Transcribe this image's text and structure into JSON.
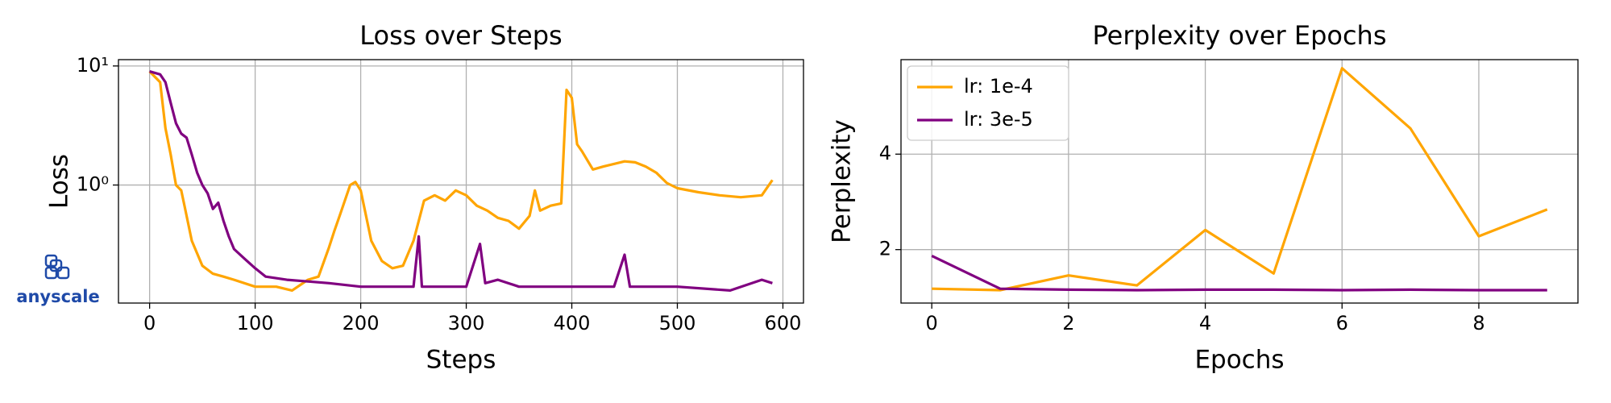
{
  "logo": "anyscale",
  "chart_data": [
    {
      "type": "line",
      "title": "Loss over Steps",
      "xlabel": "Steps",
      "ylabel": "Loss",
      "yscale": "log",
      "grid": true,
      "xlim": [
        -29.5,
        619.5
      ],
      "xticks": [
        0,
        100,
        200,
        300,
        400,
        500,
        600
      ],
      "ylim": [
        0.102,
        11.3
      ],
      "yticks": [
        {
          "value": 1,
          "label": "10⁰"
        },
        {
          "value": 10,
          "label": "10¹"
        }
      ],
      "series": [
        {
          "name": "lr: 1e-4",
          "color": "#ffa500",
          "x": [
            0,
            10,
            15,
            20,
            25,
            30,
            33,
            40,
            50,
            60,
            70,
            80,
            100,
            120,
            135,
            150,
            160,
            170,
            175,
            180,
            190,
            195,
            200,
            210,
            220,
            230,
            240,
            250,
            260,
            270,
            280,
            290,
            300,
            310,
            320,
            330,
            340,
            350,
            360,
            365,
            370,
            380,
            390,
            395,
            400,
            405,
            410,
            420,
            430,
            450,
            460,
            470,
            480,
            490,
            500,
            520,
            540,
            560,
            580,
            590
          ],
          "values": [
            9.0,
            7.3,
            3.0,
            1.8,
            1.0,
            0.9,
            0.67,
            0.34,
            0.21,
            0.18,
            0.17,
            0.16,
            0.14,
            0.14,
            0.13,
            0.16,
            0.17,
            0.3,
            0.41,
            0.55,
            1.0,
            1.06,
            0.9,
            0.34,
            0.23,
            0.2,
            0.21,
            0.34,
            0.74,
            0.82,
            0.74,
            0.9,
            0.82,
            0.67,
            0.61,
            0.53,
            0.5,
            0.43,
            0.55,
            0.9,
            0.61,
            0.67,
            0.7,
            6.3,
            5.4,
            2.2,
            1.9,
            1.35,
            1.43,
            1.58,
            1.55,
            1.43,
            1.27,
            1.04,
            0.94,
            0.87,
            0.82,
            0.79,
            0.82,
            1.1
          ]
        },
        {
          "name": "lr: 3e-5",
          "color": "#800080",
          "x": [
            0,
            10,
            15,
            20,
            25,
            30,
            35,
            40,
            45,
            50,
            55,
            60,
            65,
            70,
            75,
            80,
            90,
            100,
            110,
            130,
            150,
            170,
            200,
            240,
            250,
            255,
            258,
            300,
            313,
            318,
            330,
            350,
            400,
            440,
            450,
            455,
            500,
            550,
            580,
            590
          ],
          "values": [
            9.0,
            8.5,
            7.3,
            4.9,
            3.3,
            2.7,
            2.5,
            1.8,
            1.27,
            1.0,
            0.85,
            0.63,
            0.71,
            0.5,
            0.37,
            0.29,
            0.24,
            0.2,
            0.17,
            0.16,
            0.155,
            0.15,
            0.14,
            0.14,
            0.14,
            0.37,
            0.14,
            0.14,
            0.32,
            0.15,
            0.16,
            0.14,
            0.14,
            0.14,
            0.26,
            0.14,
            0.14,
            0.13,
            0.16,
            0.15
          ]
        }
      ]
    },
    {
      "type": "line",
      "title": "Perplexity over Epochs",
      "xlabel": "Epochs",
      "ylabel": "Perplexity",
      "grid": true,
      "legend": "upper left",
      "x": [
        0,
        1,
        2,
        3,
        4,
        5,
        6,
        7,
        8,
        9
      ],
      "xlim": [
        -0.45,
        9.45
      ],
      "xticks": [
        0,
        2,
        4,
        6,
        8
      ],
      "ylim": [
        0.88,
        5.98
      ],
      "yticks": [
        2,
        4
      ],
      "series": [
        {
          "name": "lr: 1e-4",
          "color": "#ffa500",
          "values": [
            1.18,
            1.15,
            1.46,
            1.25,
            2.41,
            1.5,
            5.8,
            4.54,
            2.28,
            2.84
          ]
        },
        {
          "name": "lr: 3e-5",
          "color": "#800080",
          "values": [
            1.87,
            1.18,
            1.16,
            1.15,
            1.16,
            1.16,
            1.15,
            1.16,
            1.15,
            1.15
          ]
        }
      ]
    }
  ]
}
